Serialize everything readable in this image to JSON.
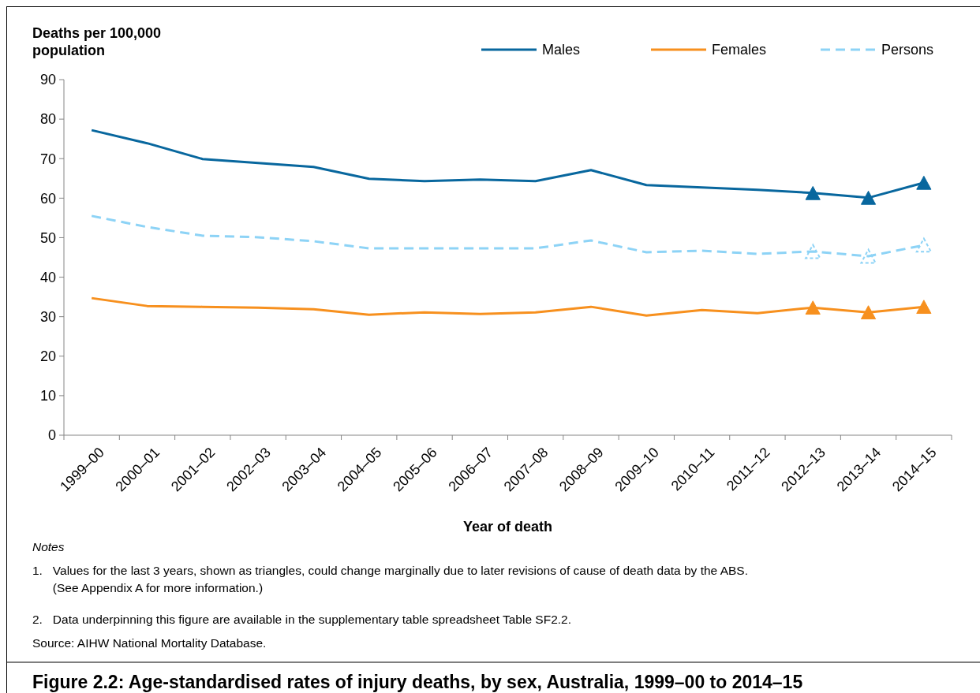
{
  "chart_data": {
    "type": "line",
    "title": "Figure 2.2: Age-standardised rates of injury deaths, by sex, Australia, 1999–00 to 2014–15",
    "xlabel": "Year of death",
    "ylabel": "Deaths per 100,000 population",
    "categories": [
      "1999–00",
      "2000–01",
      "2001–02",
      "2002–03",
      "2003–04",
      "2004–05",
      "2005–06",
      "2006–07",
      "2007–08",
      "2008–09",
      "2009–10",
      "2010–11",
      "2011–12",
      "2012–13",
      "2013–14",
      "2014–15"
    ],
    "series": [
      {
        "name": "Males",
        "color": "#08679e",
        "line_style": "solid",
        "values": [
          77.2,
          73.9,
          69.9,
          68.9,
          67.9,
          64.9,
          64.3,
          64.7,
          64.3,
          67.1,
          63.3,
          62.7,
          62.1,
          61.3,
          60.1,
          63.9
        ]
      },
      {
        "name": "Females",
        "color": "#f7901e",
        "line_style": "solid",
        "values": [
          34.7,
          32.7,
          32.5,
          32.3,
          31.9,
          30.5,
          31.1,
          30.7,
          31.1,
          32.5,
          30.3,
          31.7,
          30.9,
          32.3,
          31.1,
          32.5
        ]
      },
      {
        "name": "Persons",
        "color": "#8dd3f6",
        "line_style": "dashed",
        "values": [
          55.5,
          52.7,
          50.5,
          50.1,
          49.1,
          47.3,
          47.3,
          47.3,
          47.3,
          49.3,
          46.3,
          46.7,
          45.9,
          46.5,
          45.3,
          48.1
        ]
      },
      {
        "type": "scatter",
        "marker": "triangle",
        "color": "#08679e",
        "x": [
          "2012–13",
          "2013–14",
          "2014–15"
        ],
        "values": [
          61.3,
          60.1,
          63.9
        ]
      },
      {
        "type": "scatter",
        "marker": "triangle",
        "color": "#f7901e",
        "x": [
          "2012–13",
          "2013–14",
          "2014–15"
        ],
        "values": [
          32.3,
          31.1,
          32.5
        ]
      },
      {
        "type": "scatter",
        "marker": "triangle",
        "line_style": "dashed",
        "color": "#8dd3f6",
        "x": [
          "2012–13",
          "2013–14",
          "2014–15"
        ],
        "values": [
          46.5,
          45.3,
          48.1
        ]
      }
    ],
    "ylim": [
      0,
      90
    ],
    "yticks": [
      0,
      10,
      20,
      30,
      40,
      50,
      60,
      70,
      80,
      90
    ],
    "grid": false,
    "legend": "top right",
    "marker": "none",
    "annotations": [
      "Notes",
      "1.   Values for the last 3 years, shown as triangles, could change marginally due to later revisions of cause of death data by the ABS.\n      (See Appendix A for more information.)",
      "2.   Data underpinning this figure are available in the supplementary table spreadsheet Table SF2.2.",
      "Source: AIHW National Mortality Database."
    ]
  }
}
